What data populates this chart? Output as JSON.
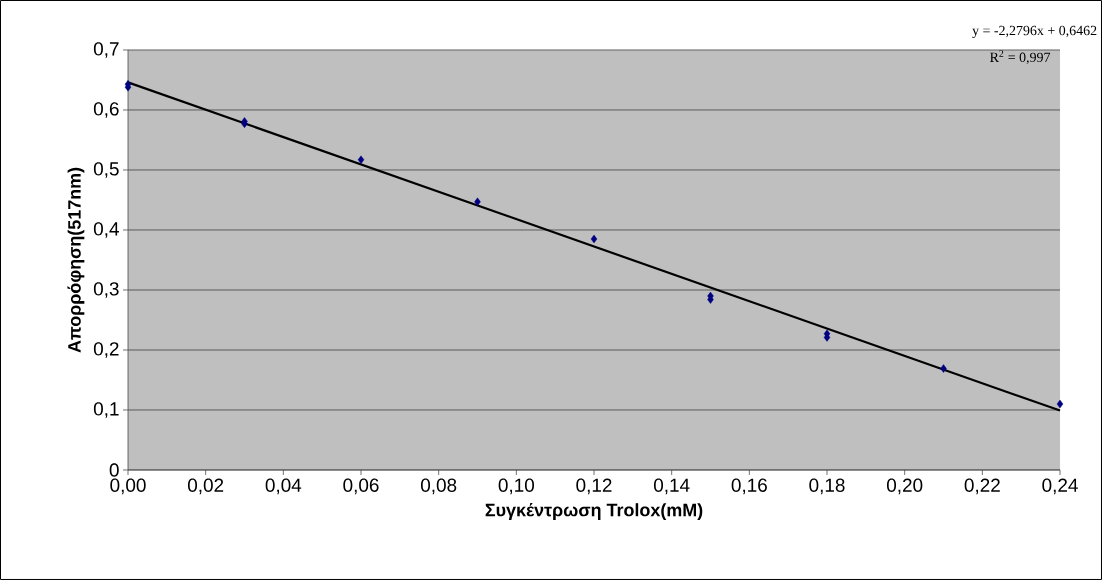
{
  "chart_data": {
    "type": "scatter",
    "xlabel": "Συγκέντρωση Trolox(mM)",
    "ylabel": "Απορρόφηση(517nm)",
    "annotations": [
      "y = -2,2796x + 0,6462",
      "R$^{2}$ = 0,997"
    ],
    "xlim": [
      0,
      0.24
    ],
    "ylim": [
      0,
      0.7
    ],
    "xticks": [
      {
        "value": 0,
        "label": "0,00"
      },
      {
        "value": 0.02,
        "label": "0,02"
      },
      {
        "value": 0.04,
        "label": "0,04"
      },
      {
        "value": 0.06,
        "label": "0,06"
      },
      {
        "value": 0.08,
        "label": "0,08"
      },
      {
        "value": 0.1,
        "label": "0,10"
      },
      {
        "value": 0.12,
        "label": "0,12"
      },
      {
        "value": 0.14,
        "label": "0,14"
      },
      {
        "value": 0.16,
        "label": "0,16"
      },
      {
        "value": 0.18,
        "label": "0,18"
      },
      {
        "value": 0.2,
        "label": "0,20"
      },
      {
        "value": 0.22,
        "label": "0,22"
      },
      {
        "value": 0.24,
        "label": "0,24"
      }
    ],
    "yticks": [
      0,
      {
        "value": 0.1,
        "label": "0,1"
      },
      {
        "value": 0.2,
        "label": "0,2"
      },
      {
        "value": 0.3,
        "label": "0,3"
      },
      {
        "value": 0.4,
        "label": "0,4"
      },
      {
        "value": 0.5,
        "label": "0,5"
      },
      {
        "value": 0.6,
        "label": "0,6"
      },
      {
        "value": 0.7,
        "label": "0,7"
      }
    ],
    "grid": "y",
    "marker": "diamond",
    "series": [
      {
        "color": "#000080",
        "x": [
          0,
          0,
          0.03,
          0.03,
          0.06,
          0.09,
          0.12,
          0.15,
          0.15,
          0.18,
          0.18,
          0.21,
          0.24
        ],
        "values": [
          0.643,
          0.638,
          0.581,
          0.577,
          0.517,
          0.447,
          0.385,
          0.29,
          0.284,
          0.227,
          0.221,
          0.169,
          0.11
        ]
      },
      {
        "type": "line",
        "color": "#000000",
        "marker": "none",
        "line_style": "solid",
        "x": [
          0,
          0.24
        ],
        "values": [
          0.646,
          0.099
        ]
      }
    ]
  }
}
